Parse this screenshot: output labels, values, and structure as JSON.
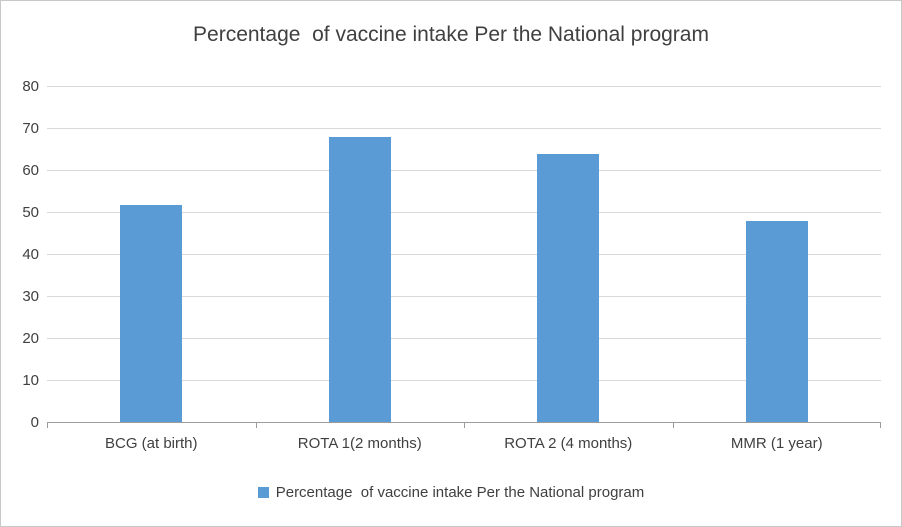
{
  "chart_data": {
    "type": "bar",
    "title": "Percentage  of vaccine intake Per the National program",
    "categories": [
      "BCG (at birth)",
      "ROTA 1(2 months)",
      "ROTA 2 (4 months)",
      "MMR (1 year)"
    ],
    "values": [
      52,
      68,
      64,
      48
    ],
    "ylim": [
      0,
      80
    ],
    "ytick_step": 10,
    "ytick_labels": [
      "0",
      "10",
      "20",
      "30",
      "40",
      "50",
      "60",
      "70",
      "80"
    ],
    "xlabel": "",
    "ylabel": "",
    "grid": true,
    "legend": "Percentage  of vaccine intake Per the National program",
    "legend_position": "bottom",
    "bar_color": "#5b9bd5",
    "gridline_color": "#d9d9d9",
    "axis_color": "#9c9c9c",
    "text_color": "#404040"
  }
}
